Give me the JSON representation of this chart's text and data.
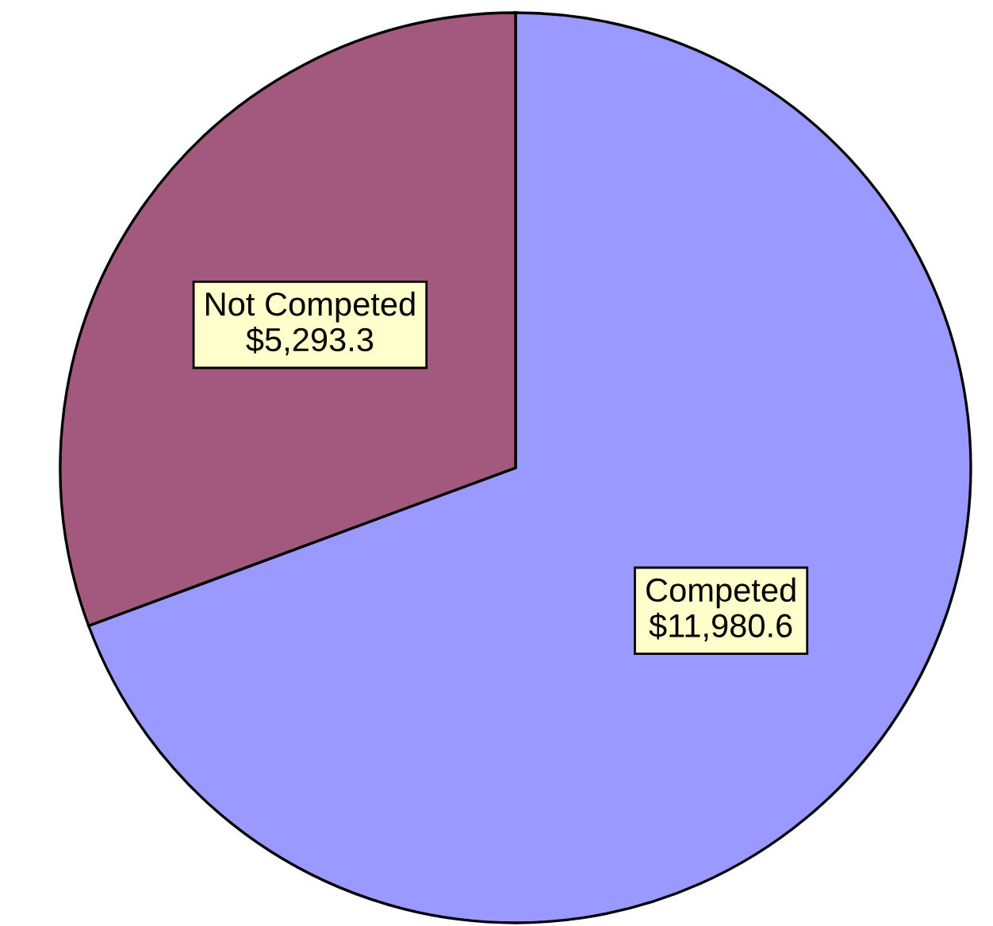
{
  "chart_data": {
    "type": "pie",
    "categories": [
      "Competed",
      "Not Competed"
    ],
    "values": [
      11980.6,
      5293.3
    ],
    "colors": [
      "#9999ff",
      "#a3587e"
    ],
    "value_labels": [
      "$11,980.6",
      "$5,293.3"
    ]
  }
}
